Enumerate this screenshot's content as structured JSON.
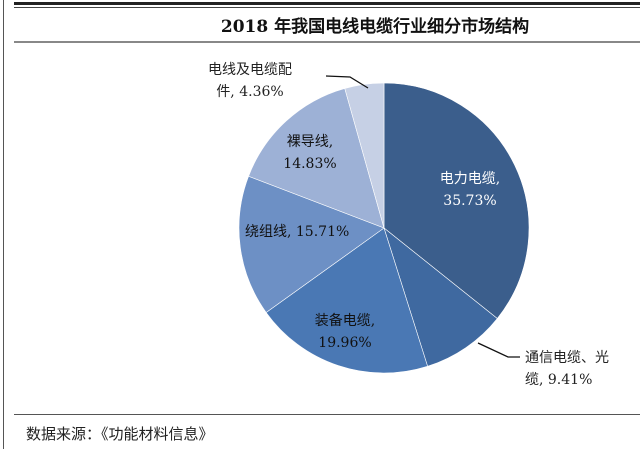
{
  "chart_data": {
    "type": "pie",
    "title": "2018 年我国电线电缆行业细分市场结构",
    "start": "top",
    "direction": "clockwise",
    "slices": [
      {
        "label": "电力电缆,",
        "value": 35.73,
        "value_label": "35.73%",
        "color": "#3b5e8c"
      },
      {
        "label": "通信电缆、光缆,",
        "value": 9.41,
        "value_label": "9.41%",
        "color": "#3f69a0"
      },
      {
        "label": "装备电缆,",
        "value": 19.96,
        "value_label": "19.96%",
        "color": "#4a78b4"
      },
      {
        "label": "绕组线,",
        "value": 15.71,
        "value_label": "15.71%",
        "color": "#6d90c5"
      },
      {
        "label": "裸导线,",
        "value": 14.83,
        "value_label": "14.83%",
        "color": "#9db1d6"
      },
      {
        "label": "电线及电缆配件,",
        "value": 4.36,
        "value_label": "4.36%",
        "color": "#c6d0e5"
      }
    ]
  },
  "source": "数据来源：《功能材料信息》"
}
